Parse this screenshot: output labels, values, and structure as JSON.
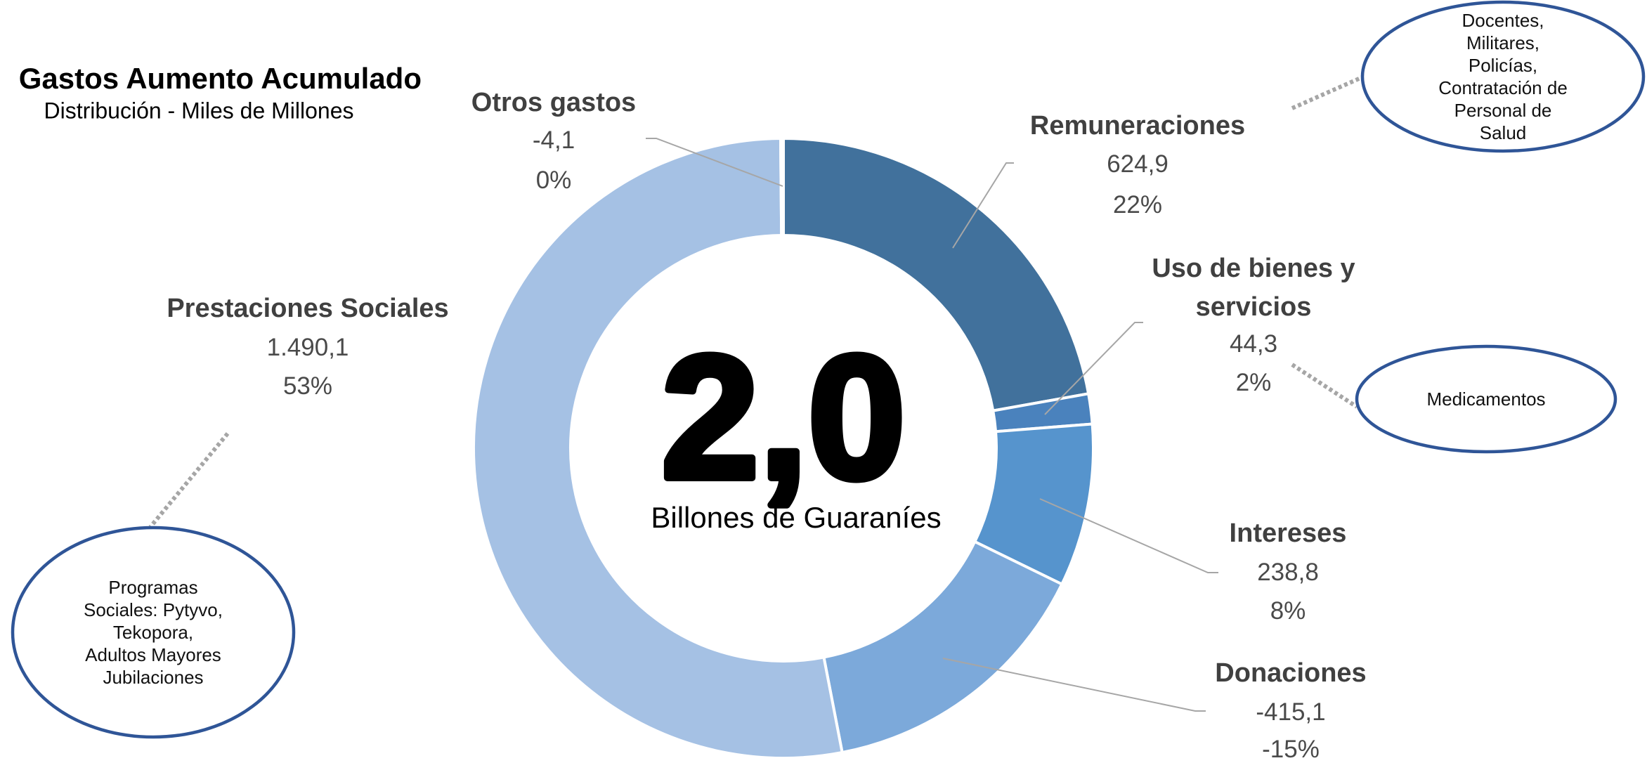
{
  "chart_data": {
    "type": "pie",
    "title": "Gastos Aumento Acumulado",
    "subtitle": "Distribución - Miles de Millones",
    "categories": [
      "Remuneraciones",
      "Uso de bienes y servicios",
      "Intereses",
      "Donaciones",
      "Prestaciones Sociales",
      "Otros gastos"
    ],
    "values": [
      624.9,
      44.3,
      238.8,
      -415.1,
      1490.1,
      -4.1
    ],
    "value_labels": [
      "624,9",
      "44,3",
      "238,8",
      "-415,1",
      "1.490,1",
      "-4,1"
    ],
    "percent_labels": [
      "22%",
      "2%",
      "8%",
      "-15%",
      "53%",
      "0%"
    ],
    "colors": [
      "#41719c",
      "#4a82bd",
      "#5694cd",
      "#7ca9da",
      "#a5c1e4",
      "#a5c1e4"
    ],
    "center_value": "2,0",
    "center_label": "Billones de Guaraníes",
    "annotations": [
      {
        "text": "Docentes,\nMilitares, Policías,\nContratación de\nPersonal de\nSalud"
      },
      {
        "text": "Medicamentos"
      },
      {
        "text": "Programas\nSociales: Pytyvo,\nTekopora,\nAdultos Mayores\nJubilaciones"
      }
    ]
  }
}
